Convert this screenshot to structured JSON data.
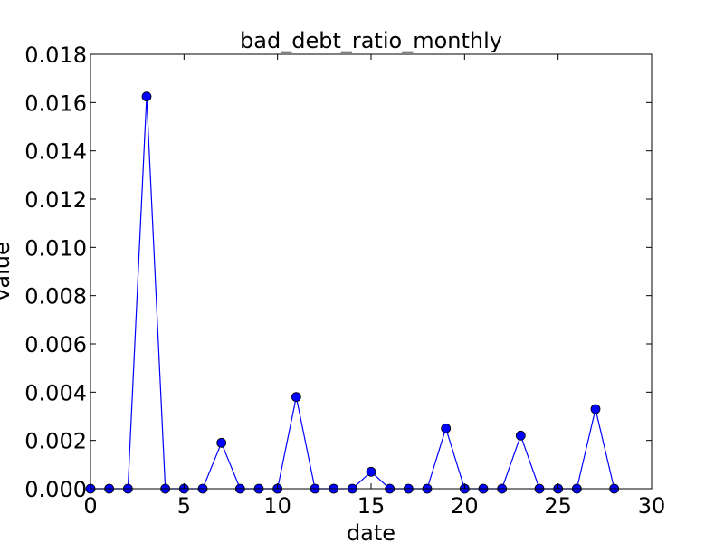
{
  "chart_data": {
    "type": "line",
    "title": "bad_debt_ratio_monthly",
    "xlabel": "date",
    "ylabel": "value",
    "xlim": [
      0,
      30
    ],
    "ylim": [
      0,
      0.018
    ],
    "x_ticks": [
      0,
      5,
      10,
      15,
      20,
      25,
      30
    ],
    "x_tick_labels": [
      "0",
      "5",
      "10",
      "15",
      "20",
      "25",
      "30"
    ],
    "y_ticks": [
      0,
      0.002,
      0.004,
      0.006,
      0.008,
      0.01,
      0.012,
      0.014,
      0.016,
      0.018
    ],
    "y_tick_labels": [
      "0.000",
      "0.002",
      "0.004",
      "0.006",
      "0.008",
      "0.010",
      "0.012",
      "0.014",
      "0.016",
      "0.018"
    ],
    "grid": false,
    "series": [
      {
        "color": "#0000ff",
        "marker": "circle",
        "x": [
          0,
          1,
          2,
          3,
          4,
          5,
          6,
          7,
          8,
          9,
          10,
          11,
          12,
          13,
          14,
          15,
          16,
          17,
          18,
          19,
          20,
          21,
          22,
          23,
          24,
          25,
          26,
          27,
          28
        ],
        "values": [
          0,
          0,
          0,
          0.01625,
          0,
          0,
          0,
          0.0019,
          0,
          0,
          0,
          0.0038,
          0,
          0,
          0,
          0.0007,
          0,
          0,
          0,
          0.0025,
          0,
          0,
          0,
          0.0022,
          0,
          0,
          0,
          0.0033,
          0
        ]
      }
    ]
  }
}
